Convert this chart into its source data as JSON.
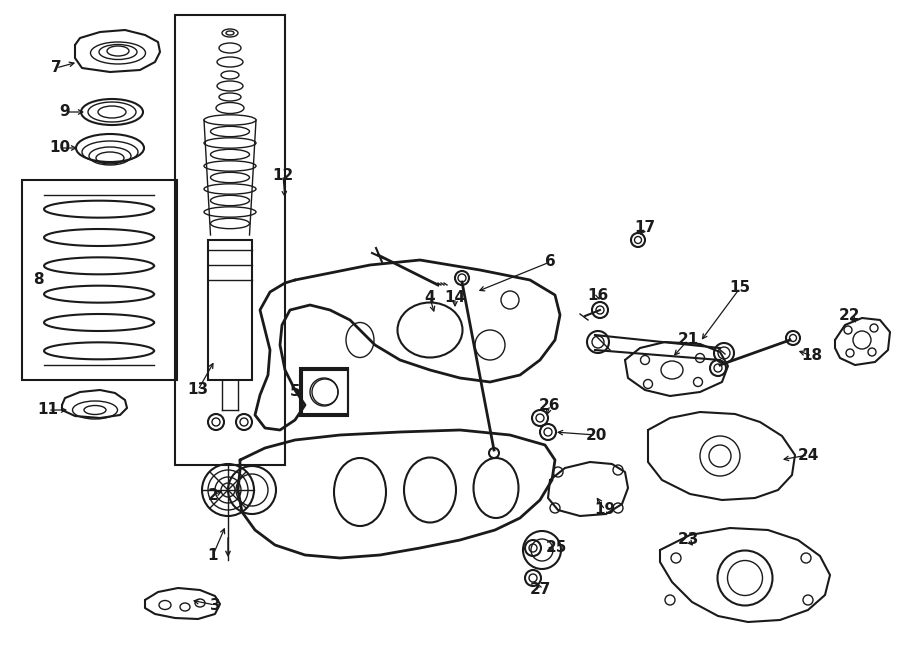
{
  "bg_color": "#ffffff",
  "fig_width": 9.0,
  "fig_height": 6.61,
  "dpi": 100,
  "line_color": "#1a1a1a",
  "label_fontsize": 11
}
